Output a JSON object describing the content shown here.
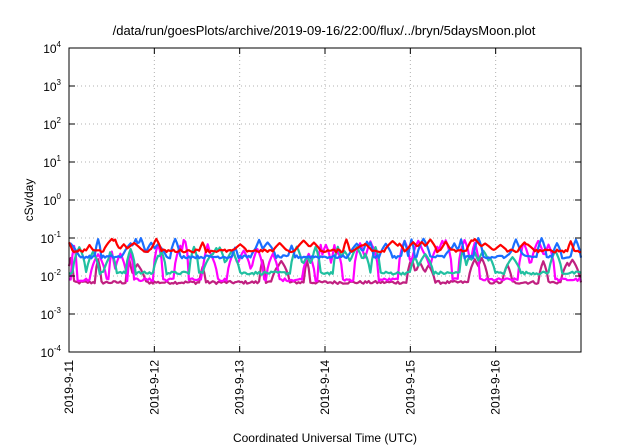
{
  "chart_data": {
    "type": "line",
    "title": "/data/run/goesPlots/archive/2019-09-16/22:00/flux/../bryn/5daysMoon.plot",
    "xlabel": "Coordinated Universal Time (UTC)",
    "ylabel": "cSv/day",
    "y_scale": "log",
    "ylim": [
      0.0001,
      10000
    ],
    "xlim": [
      "2019-09-11T00:00",
      "2019-09-17T00:00"
    ],
    "x_ticks": [
      "2019-9-11",
      "2019-9-12",
      "2019-9-13",
      "2019-9-14",
      "2019-9-15",
      "2019-9-16"
    ],
    "y_ticks": [
      {
        "value": 0.0001,
        "base": "10",
        "exp": "-4"
      },
      {
        "value": 0.001,
        "base": "10",
        "exp": "-3"
      },
      {
        "value": 0.01,
        "base": "10",
        "exp": "-2"
      },
      {
        "value": 0.1,
        "base": "10",
        "exp": "-1"
      },
      {
        "value": 1,
        "base": "10",
        "exp": "0"
      },
      {
        "value": 10,
        "base": "10",
        "exp": "1"
      },
      {
        "value": 100,
        "base": "10",
        "exp": "2"
      },
      {
        "value": 1000,
        "base": "10",
        "exp": "3"
      },
      {
        "value": 10000,
        "base": "10",
        "exp": "4"
      }
    ],
    "grid": true,
    "series": [
      {
        "color": "#ff0000",
        "baseline": 0.046,
        "spike_peak": 0.095,
        "spike_count": 30,
        "values_note": ""
      },
      {
        "color": "#1a6eff",
        "baseline": 0.032,
        "spike_peak": 0.1,
        "spike_count": 36
      },
      {
        "color": "#20c0a0",
        "baseline": 0.012,
        "spike_peak": 0.06,
        "spike_count": 34
      },
      {
        "color": "#ff00ff",
        "baseline": 0.008,
        "spike_peak": 0.09,
        "spike_count": 40
      },
      {
        "color": "#c02080",
        "baseline": 0.0068,
        "spike_peak": 0.03,
        "spike_count": 20
      }
    ]
  }
}
